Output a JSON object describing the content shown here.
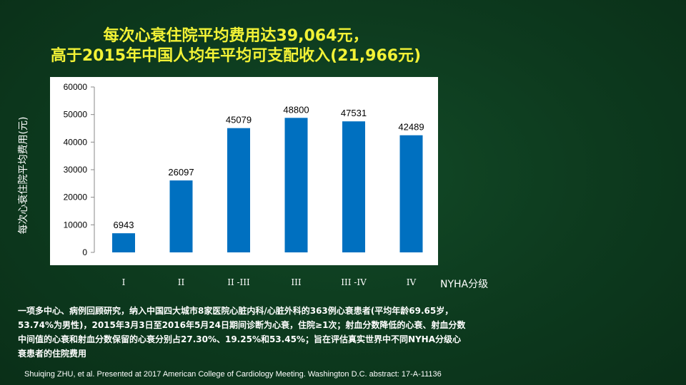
{
  "slide": {
    "title_line1": "每次心衰住院平均费用达39,064元，",
    "title_line2": "高于2015年中国人均年平均可支配收入(21,966元)",
    "description": "一项多中心、病例回顾研究，纳入中国四大城市8家医院心脏内科/心脏外科的363例心衰患者(平均年龄69.65岁，53.74%为男性)，2015年3月3日至2016年5月24日期间诊断为心衰，住院≥1次；射血分数降低的心衰、射血分数中间值的心衰和射血分数保留的心衰分别占27.30%、19.25%和53.45%；旨在评估真实世界中不同NYHA分级心衰患者的住院费用",
    "citation": "Shuiqing ZHU, et al. Presented at 2017 American College of Cardiology Meeting. Washington D.C. abstract: 17-A-11136"
  },
  "colors": {
    "background": "#0d3a1e",
    "title": "#f2f236",
    "bar": "#0070c0",
    "plot_background": "#ffffff"
  },
  "chart_data": {
    "type": "bar",
    "categories": [
      "I",
      "II",
      "II -III",
      "III",
      "III -IV",
      "IV"
    ],
    "values": [
      6943,
      26097,
      45079,
      48800,
      47531,
      42489
    ],
    "data_labels": [
      "6943",
      "26097",
      "45079",
      "48800",
      "47531",
      "42489"
    ],
    "ylabel": "每次心衰住院平均费用(元)",
    "xlabel": "NYHA分级",
    "ylim": [
      0,
      60000
    ],
    "yticks": [
      0,
      10000,
      20000,
      30000,
      40000,
      50000,
      60000
    ],
    "ytick_labels": [
      "0",
      "10000",
      "20000",
      "30000",
      "40000",
      "50000",
      "60000"
    ],
    "grid": false,
    "legend": "none"
  }
}
